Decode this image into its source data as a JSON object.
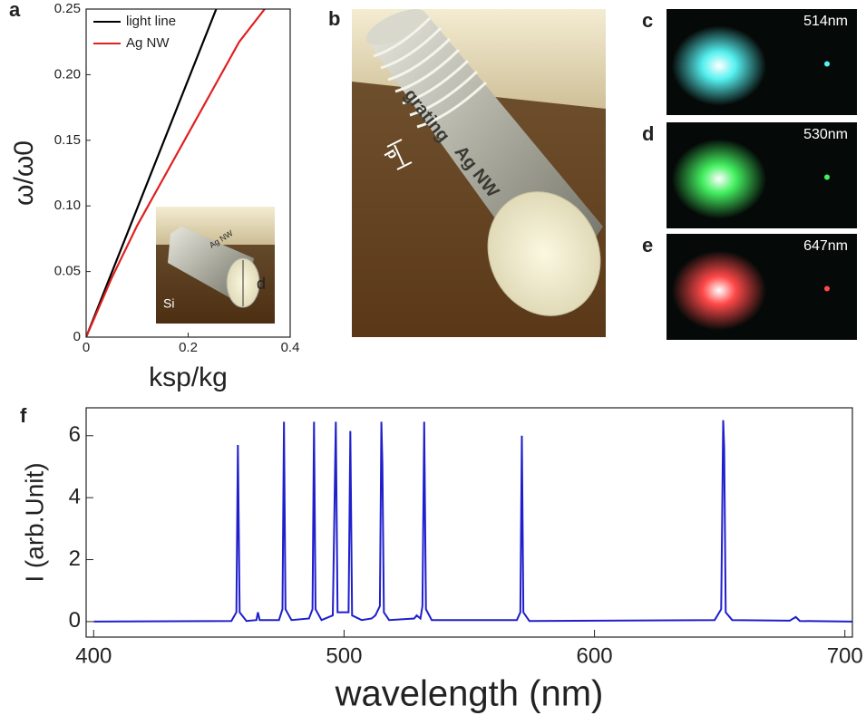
{
  "chart_data": [
    {
      "type": "line",
      "panel": "a",
      "x_label": "ksp/kg",
      "y_label": "ω/ω0",
      "xlim": [
        0,
        0.4
      ],
      "xticks": [
        0,
        0.2,
        0.4
      ],
      "ylim": [
        0,
        0.25
      ],
      "yticks": [
        0,
        0.05,
        {
          "value": 0.1,
          "label": "0.10"
        },
        0.15,
        {
          "value": 0.2,
          "label": "0.20"
        },
        0.25
      ],
      "series": [
        {
          "name": "light line",
          "color": "#000000",
          "x": [
            0,
            0.255
          ],
          "values": [
            0,
            0.25
          ]
        },
        {
          "name": "Ag NW",
          "color": "#e02020",
          "x": [
            0,
            0.05,
            0.1,
            0.15,
            0.2,
            0.25,
            0.3,
            0.35
          ],
          "values": [
            0,
            0.045,
            0.085,
            0.12,
            0.155,
            0.19,
            0.225,
            0.25
          ]
        }
      ],
      "inset_labels": [
        "Ag NW",
        "d",
        "Si"
      ]
    },
    {
      "type": "line",
      "panel": "f",
      "x_label": "wavelength (nm)",
      "y_label": "I (arb.Unit)",
      "xlim": [
        397,
        703
      ],
      "xticks": [
        400,
        500,
        600,
        700
      ],
      "ylim": [
        -0.5,
        6.9
      ],
      "yticks": [
        0,
        2,
        4,
        6
      ],
      "series": [
        {
          "name": null,
          "color": "#1f1fcc",
          "x": [
            400,
            455,
            457,
            457.6,
            458.3,
            461,
            465,
            465.6,
            466.3,
            474,
            475.4,
            476,
            476.6,
            479,
            486,
            487.4,
            488,
            488.6,
            491,
            495.5,
            496.7,
            497.4,
            501.8,
            502.5,
            503.2,
            507,
            511,
            512.5,
            514.3,
            514.9,
            515.3,
            515.9,
            518,
            528,
            529,
            530.5,
            531.3,
            532,
            532.7,
            535,
            569,
            570.4,
            571,
            571.6,
            574,
            648,
            650.6,
            651.4,
            651.8,
            652.4,
            655,
            678,
            680.4,
            682,
            703
          ],
          "values": [
            0,
            0.02,
            0.3,
            5.7,
            0.3,
            0.02,
            0.05,
            0.3,
            0.05,
            0.05,
            0.4,
            6.45,
            0.4,
            0.05,
            0.1,
            0.4,
            6.45,
            0.4,
            0.05,
            0.2,
            6.45,
            0.3,
            0.3,
            6.15,
            0.2,
            0.05,
            0.1,
            0.2,
            0.5,
            6.45,
            5.1,
            0.3,
            0.05,
            0.1,
            0.2,
            0.1,
            0.5,
            6.45,
            0.4,
            0.05,
            0.05,
            0.3,
            6.0,
            0.3,
            0.02,
            0.05,
            0.4,
            6.5,
            5.6,
            0.3,
            0.05,
            0.03,
            0.15,
            0.02,
            0
          ]
        }
      ]
    }
  ],
  "images": [
    {
      "panel": "b",
      "labels": [
        "grating",
        "Ag NW",
        "p"
      ]
    },
    {
      "panel": "c",
      "label": "514nm",
      "color": "#55f0f0"
    },
    {
      "panel": "d",
      "label": "530nm",
      "color": "#44f060"
    },
    {
      "panel": "e",
      "label": "647nm",
      "color": "#ff4848"
    }
  ]
}
